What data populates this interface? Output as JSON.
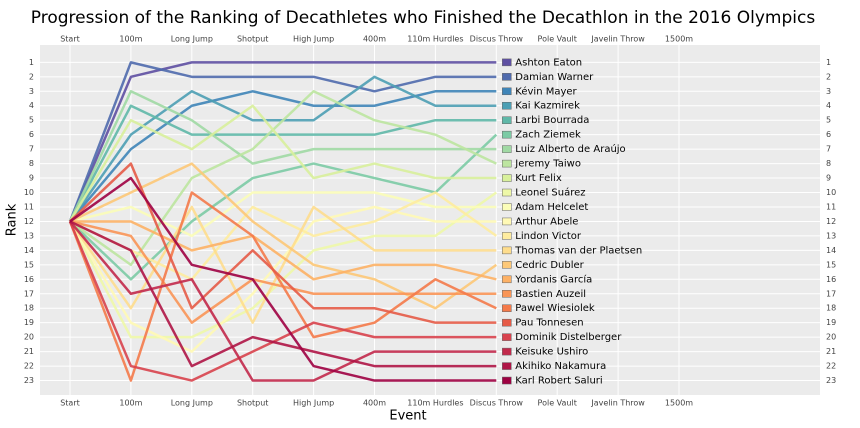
{
  "chart_data": {
    "type": "line",
    "title": "Progression of the Ranking of Decathletes who Finished the Decathlon in the 2016 Olympics",
    "x_label": "Event",
    "y_label": "Rank",
    "categories": [
      "Start",
      "100m",
      "Long Jump",
      "Shotput",
      "High Jump",
      "400m",
      "110m Hurdles",
      "Discus Throw",
      "Pole Vault",
      "Javelin Throw",
      "1500m"
    ],
    "ylim": [
      24,
      -0.2
    ],
    "yticks": [
      1,
      2,
      3,
      4,
      5,
      6,
      7,
      8,
      9,
      10,
      11,
      12,
      13,
      14,
      15,
      16,
      17,
      18,
      19,
      20,
      21,
      22,
      23
    ],
    "grid": true,
    "series": [
      {
        "name": "Ashton Eaton",
        "color": "#5e4fa2",
        "values": [
          12,
          2,
          1,
          1,
          1,
          1,
          1,
          1,
          null,
          null,
          null
        ]
      },
      {
        "name": "Damian Warner",
        "color": "#4f6aad",
        "values": [
          12,
          1,
          2,
          2,
          2,
          3,
          2,
          2,
          null,
          null,
          null
        ]
      },
      {
        "name": "Kévin Mayer",
        "color": "#3f85b8",
        "values": [
          12,
          7,
          4,
          3,
          4,
          4,
          3,
          3,
          null,
          null,
          null
        ]
      },
      {
        "name": "Kai Kazmirek",
        "color": "#4c9fb4",
        "values": [
          12,
          6,
          3,
          5,
          5,
          2,
          4,
          4,
          null,
          null,
          null
        ]
      },
      {
        "name": "Larbi Bourrada",
        "color": "#5fb8a8",
        "values": [
          12,
          4,
          6,
          6,
          6,
          6,
          5,
          5,
          null,
          null,
          null
        ]
      },
      {
        "name": "Zach Ziemek",
        "color": "#7ccba5",
        "values": [
          12,
          16,
          12,
          9,
          8,
          9,
          10,
          6,
          null,
          null,
          null
        ]
      },
      {
        "name": "Luiz Alberto de Araújo",
        "color": "#a0d9a4",
        "values": [
          12,
          3,
          5,
          8,
          7,
          7,
          7,
          7,
          null,
          null,
          null
        ]
      },
      {
        "name": "Jeremy Taiwo",
        "color": "#bde5a0",
        "values": [
          12,
          15,
          9,
          7,
          3,
          5,
          6,
          8,
          null,
          null,
          null
        ]
      },
      {
        "name": "Kurt Felix",
        "color": "#d8f09b",
        "values": [
          12,
          5,
          7,
          4,
          9,
          8,
          9,
          9,
          null,
          null,
          null
        ]
      },
      {
        "name": "Leonel Suárez",
        "color": "#eef8a8",
        "values": [
          12,
          20,
          20,
          18,
          14,
          13,
          13,
          10,
          null,
          null,
          null
        ]
      },
      {
        "name": "Adam Helcelet",
        "color": "#fbfdb8",
        "values": [
          12,
          11,
          13,
          10,
          10,
          10,
          11,
          11,
          null,
          null,
          null
        ]
      },
      {
        "name": "Arthur Abele",
        "color": "#fff9b5",
        "values": [
          12,
          19,
          21,
          17,
          12,
          11,
          12,
          12,
          null,
          null,
          null
        ]
      },
      {
        "name": "Lindon Victor",
        "color": "#feec9f",
        "values": [
          12,
          14,
          16,
          11,
          13,
          12,
          10,
          13,
          null,
          null,
          null
        ]
      },
      {
        "name": "Thomas van der Plaetsen",
        "color": "#fedd8d",
        "values": [
          12,
          18,
          11,
          19,
          11,
          14,
          14,
          14,
          null,
          null,
          null
        ]
      },
      {
        "name": "Cedric Dubler",
        "color": "#fdc877",
        "values": [
          12,
          10,
          8,
          12,
          15,
          16,
          18,
          15,
          null,
          null,
          null
        ]
      },
      {
        "name": "Yordanis García",
        "color": "#fdb165",
        "values": [
          12,
          12,
          14,
          13,
          16,
          15,
          15,
          16,
          null,
          null,
          null
        ]
      },
      {
        "name": "Bastien Auzeil",
        "color": "#f99556",
        "values": [
          12,
          13,
          19,
          16,
          17,
          17,
          17,
          17,
          null,
          null,
          null
        ]
      },
      {
        "name": "Pawel Wiesiolek",
        "color": "#f47a4a",
        "values": [
          12,
          23,
          10,
          13,
          20,
          19,
          16,
          18,
          null,
          null,
          null
        ]
      },
      {
        "name": "Pau Tonnesen",
        "color": "#e65b47",
        "values": [
          12,
          8,
          18,
          14,
          18,
          18,
          19,
          19,
          null,
          null,
          null
        ]
      },
      {
        "name": "Dominik Distelberger",
        "color": "#d8424d",
        "values": [
          12,
          22,
          23,
          21,
          19,
          20,
          20,
          20,
          null,
          null,
          null
        ]
      },
      {
        "name": "Keisuke Ushiro",
        "color": "#c2294b",
        "values": [
          12,
          17,
          16,
          23,
          23,
          21,
          21,
          21,
          null,
          null,
          null
        ]
      },
      {
        "name": "Akihiko Nakamura",
        "color": "#af1546",
        "values": [
          12,
          14,
          22,
          20,
          21,
          22,
          22,
          22,
          null,
          null,
          null
        ]
      },
      {
        "name": "Karl Robert Saluri",
        "color": "#9e0142",
        "values": [
          12,
          9,
          15,
          16,
          22,
          23,
          23,
          23,
          null,
          null,
          null
        ]
      }
    ]
  }
}
